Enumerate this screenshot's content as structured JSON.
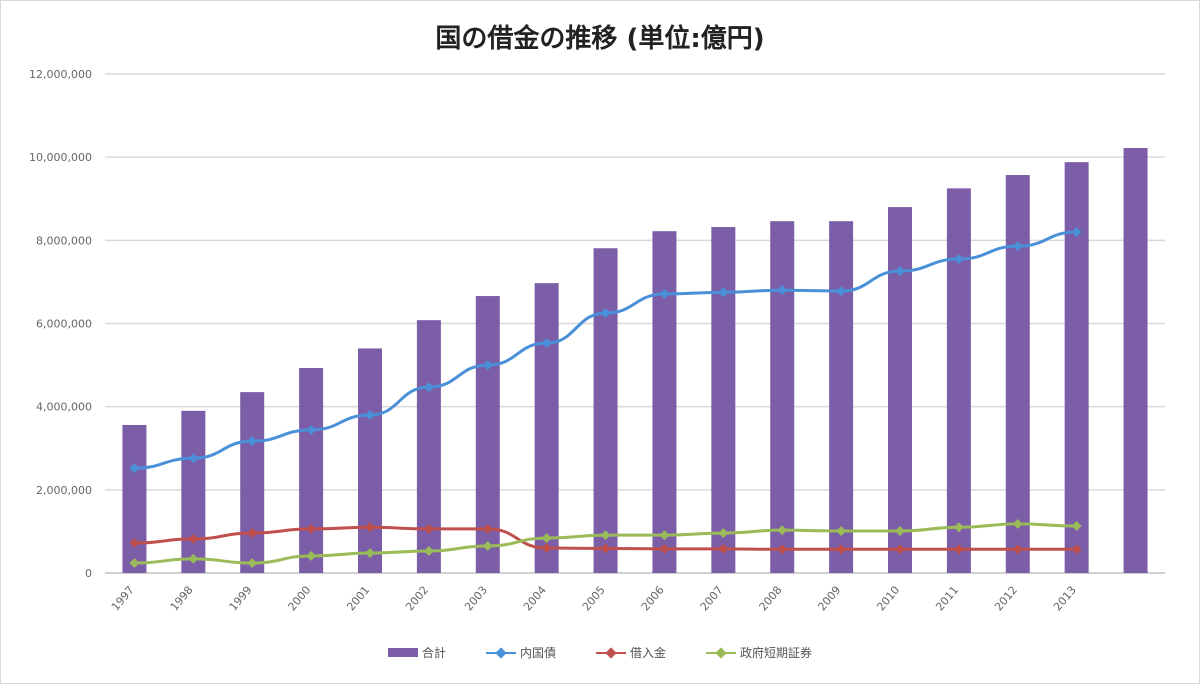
{
  "chart_data": {
    "type": "bar",
    "title": "国の借金の推移 (単位:億円)",
    "xlabel": "",
    "ylabel": "",
    "categories": [
      "1997",
      "1998",
      "1999",
      "2000",
      "2001",
      "2002",
      "2003",
      "2004",
      "2005",
      "2006",
      "2007",
      "2008",
      "2009",
      "2010",
      "2011",
      "2012",
      "2013",
      ""
    ],
    "ylim": [
      0,
      12000000
    ],
    "yticks": [
      "0",
      "2,000,000",
      "4,000,000",
      "6,000,000",
      "8,000,000",
      "10,000,000",
      "12,000,000"
    ],
    "ytick_values": [
      0,
      2000000,
      4000000,
      6000000,
      8000000,
      10000000,
      12000000
    ],
    "grid": true,
    "legend": "bottom",
    "series": [
      {
        "name": "合計",
        "kind": "bar",
        "color": "#7b5ea7",
        "values": [
          3560000,
          3900000,
          4350000,
          4930000,
          5400000,
          6080000,
          6660000,
          6970000,
          7810000,
          8220000,
          8320000,
          8460000,
          8460000,
          8800000,
          9250000,
          9570000,
          9880000,
          10220000
        ]
      },
      {
        "name": "内国債",
        "kind": "line",
        "color": "#4a90d9",
        "values": [
          2520000,
          2760000,
          3170000,
          3440000,
          3800000,
          4470000,
          5000000,
          5530000,
          6250000,
          6710000,
          6750000,
          6800000,
          6780000,
          7260000,
          7550000,
          7860000,
          8200000,
          null
        ]
      },
      {
        "name": "借入金",
        "kind": "line",
        "color": "#c0504d",
        "values": [
          720000,
          820000,
          960000,
          1060000,
          1100000,
          1060000,
          1060000,
          600000,
          590000,
          580000,
          580000,
          570000,
          570000,
          570000,
          570000,
          570000,
          570000,
          null
        ]
      },
      {
        "name": "政府短期証券",
        "kind": "line",
        "color": "#9bbb59",
        "values": [
          240000,
          340000,
          240000,
          410000,
          480000,
          530000,
          650000,
          840000,
          910000,
          910000,
          960000,
          1030000,
          1010000,
          1010000,
          1100000,
          1180000,
          1130000,
          null
        ]
      }
    ]
  }
}
